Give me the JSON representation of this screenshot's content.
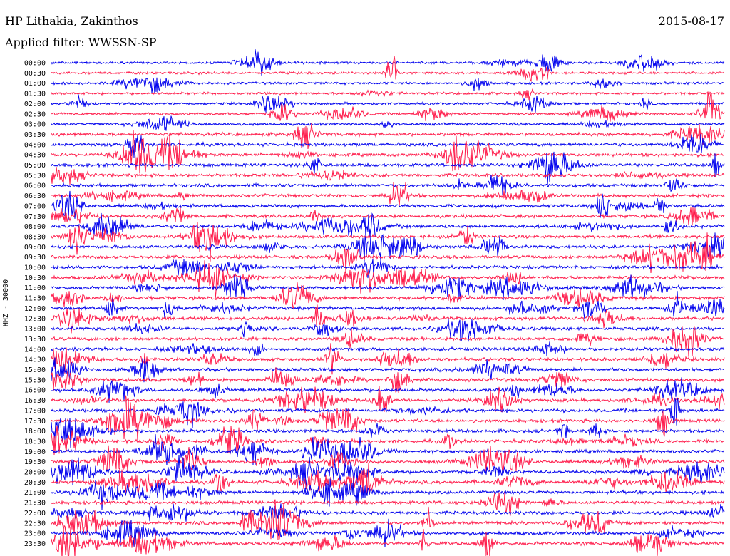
{
  "header": {
    "station": "HP Lithakia, Zakinthos",
    "date": "2015-08-17",
    "filter": "Applied filter: WWSSN-SP",
    "channel": "HHZ - 30000"
  },
  "colors": {
    "trace_a": "#0000ee",
    "trace_b": "#ff1a4a"
  },
  "chart_data": {
    "type": "line",
    "subtype": "helicorder",
    "title": "HP Lithakia, Zakinthos",
    "subtitle": "Applied filter: WWSSN-SP",
    "ylabel": "HHZ - 30000",
    "xlabel": "",
    "date": "2015-08-17",
    "row_interval_minutes": 30,
    "row_labels": [
      "00:00",
      "00:30",
      "01:00",
      "01:30",
      "02:00",
      "02:30",
      "03:00",
      "03:30",
      "04:00",
      "04:30",
      "05:00",
      "05:30",
      "06:00",
      "06:30",
      "07:00",
      "07:30",
      "08:00",
      "08:30",
      "09:00",
      "09:30",
      "10:00",
      "10:30",
      "11:00",
      "11:30",
      "12:00",
      "12:30",
      "13:00",
      "13:30",
      "14:00",
      "14:30",
      "15:00",
      "15:30",
      "16:00",
      "16:30",
      "17:00",
      "17:30",
      "18:00",
      "18:30",
      "19:00",
      "19:30",
      "20:00",
      "20:30",
      "21:00",
      "21:30",
      "22:00",
      "22:30",
      "23:00",
      "23:30"
    ],
    "series": [
      {
        "color": "#0000ee"
      },
      {
        "color": "#ff1a4a"
      }
    ],
    "grid": false,
    "legend": "none"
  }
}
